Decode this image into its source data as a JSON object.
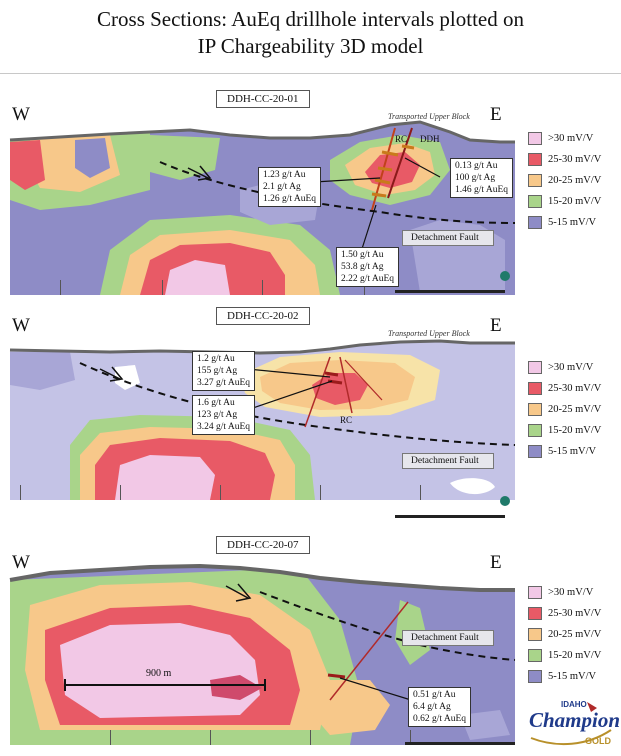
{
  "title": {
    "line1": "Cross Sections: AuEq drillhole intervals plotted on",
    "line2": "IP Chargeability 3D model"
  },
  "compass": {
    "west": "W",
    "east": "E"
  },
  "legend_items": [
    {
      "label": ">30 mV/V",
      "color": "#f2c8e6"
    },
    {
      "label": "25-30 mV/V",
      "color": "#e85a66"
    },
    {
      "label": "20-25 mV/V",
      "color": "#f7c88a"
    },
    {
      "label": "15-20 mV/V",
      "color": "#a9d48a"
    },
    {
      "label": "5-15 mV/V",
      "color": "#8e8cc6"
    }
  ],
  "sections": [
    {
      "name": "DDH-CC-20-01",
      "transported": "Transported Upper Block",
      "fault_label": "Detachment Fault",
      "hole_tags": [
        "RC",
        "DDH"
      ],
      "callouts": [
        {
          "lines": [
            "1.23 g/t Au",
            "2.1 g/t Ag",
            "1.26 g/t AuEq"
          ]
        },
        {
          "lines": [
            "0.13 g/t Au",
            "100 g/t Ag",
            "1.46 g/t AuEq"
          ]
        },
        {
          "lines": [
            "1.50 g/t Au",
            "53.8 g/t Ag",
            "2.22 g/t AuEq"
          ]
        }
      ]
    },
    {
      "name": "DDH-CC-20-02",
      "transported": "Transported Upper Block",
      "fault_label": "Detachment Fault",
      "hole_tags": [
        "RC"
      ],
      "callouts": [
        {
          "lines": [
            "1.2 g/t Au",
            "155 g/t Ag",
            "3.27 g/t AuEq"
          ]
        },
        {
          "lines": [
            "1.6 g/t Au",
            "123 g/t Ag",
            "3.24 g/t AuEq"
          ]
        }
      ]
    },
    {
      "name": "DDH-CC-20-07",
      "fault_label": "Detachment Fault",
      "scale_label": "900 m",
      "callouts": [
        {
          "lines": [
            "0.51 g/t Au",
            "6.4 g/t Ag",
            "0.62 g/t AuEq"
          ]
        }
      ]
    }
  ],
  "logo": {
    "top": "IDAHO",
    "name": "Champion",
    "bottom": "GOLD"
  }
}
